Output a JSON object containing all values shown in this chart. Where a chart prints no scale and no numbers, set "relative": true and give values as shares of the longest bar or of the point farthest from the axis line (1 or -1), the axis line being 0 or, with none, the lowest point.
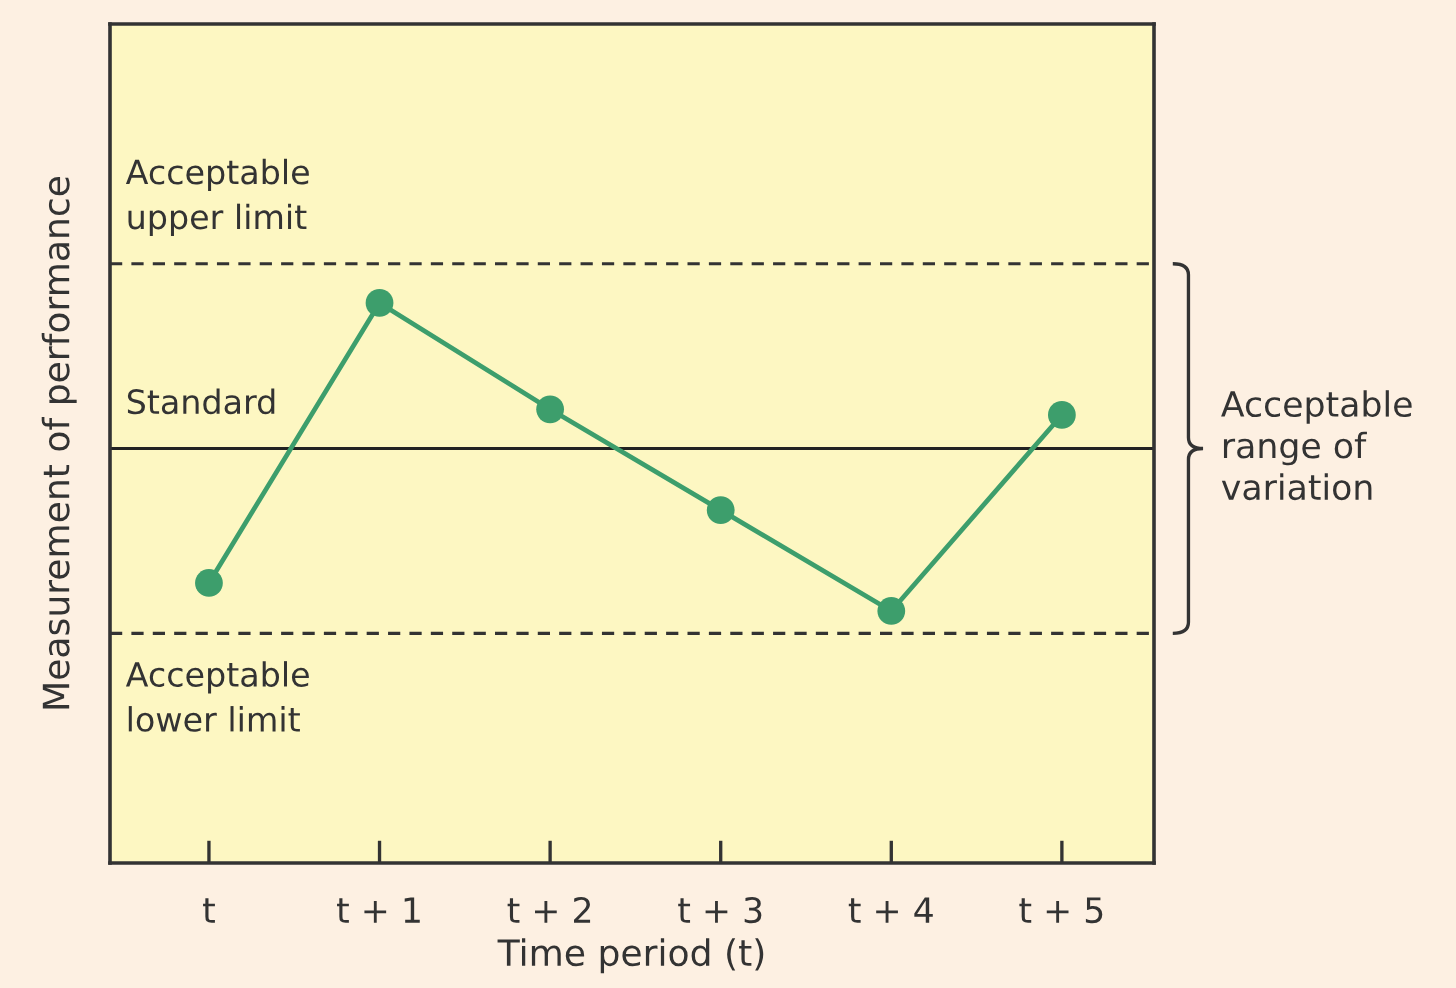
{
  "chart_data": {
    "type": "line",
    "xlabel": "Time period (t)",
    "ylabel": "Measurement of performance",
    "categories": [
      "t",
      "t + 1",
      "t + 2",
      "t + 3",
      "t + 4",
      "t + 5"
    ],
    "series": [
      {
        "color": "#3d9e6c",
        "values": [
          0.5,
          1,
          0.81,
          0.63,
          0.45,
          0.8
        ]
      }
    ],
    "relative": true,
    "marker": "circle",
    "line_style": "solid",
    "ref_lines": [
      {
        "axis": "y",
        "value": 1.07,
        "label": "Acceptable\nupper limit",
        "color": "#333333",
        "line_style": "dashed"
      },
      {
        "axis": "y",
        "value": 0.74,
        "label": "Standard",
        "color": "#222222",
        "line_style": "solid"
      },
      {
        "axis": "y",
        "value": 0.41,
        "label": "Acceptable\nlower limit",
        "color": "#333333",
        "line_style": "dashed"
      }
    ],
    "annotations": [
      "Acceptable\nrange of\nvariation"
    ]
  }
}
